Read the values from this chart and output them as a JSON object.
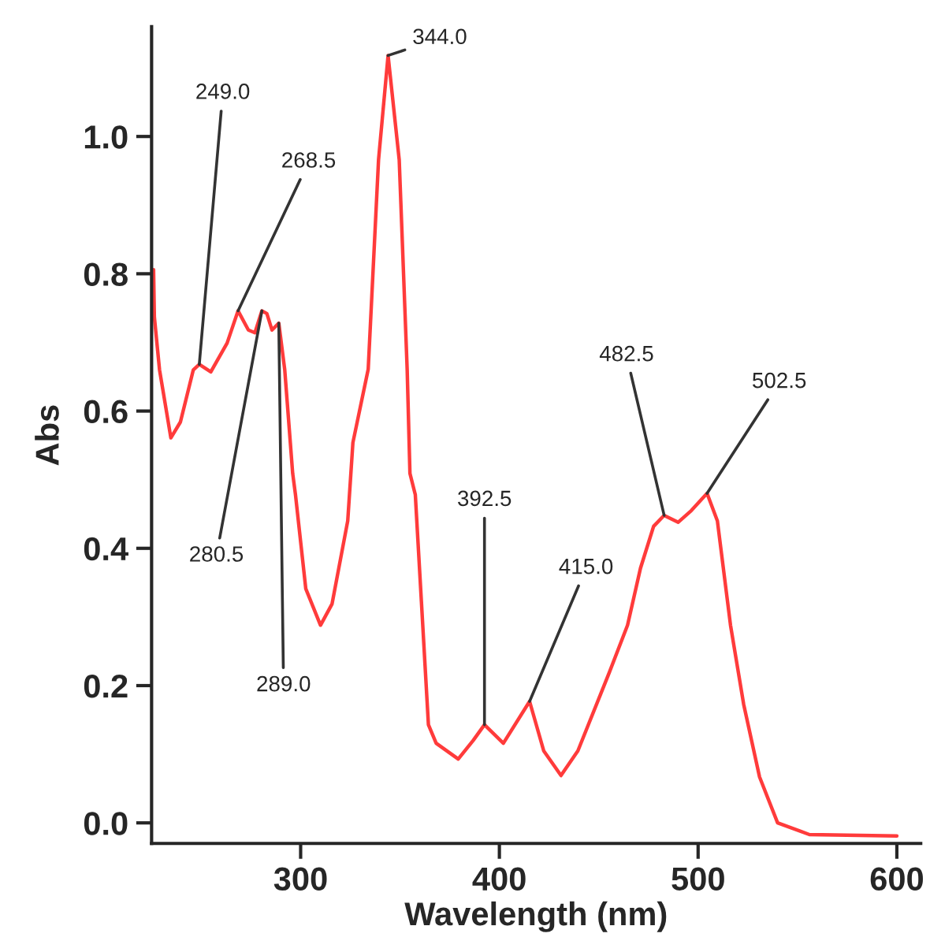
{
  "chart_data": {
    "type": "line",
    "xlabel": "Wavelength (nm)",
    "ylabel": "Abs",
    "x": [
      226,
      226.4,
      229,
      234.7,
      239.5,
      246,
      249,
      254.8,
      263,
      268.5,
      273.7,
      277,
      280.5,
      283,
      285.6,
      289,
      292,
      296,
      297.4,
      302.6,
      310,
      315.8,
      323.7,
      326.3,
      334,
      339.2,
      344,
      349.6,
      353.6,
      355,
      357.7,
      364.3,
      368.2,
      379.3,
      386.8,
      392.5,
      402,
      415.2,
      422.3,
      431,
      439.5,
      455.3,
      464.5,
      471,
      477.6,
      482.9,
      490,
      496.6,
      504.5,
      509.7,
      516.3,
      522.9,
      530.9,
      540,
      556,
      600
    ],
    "series": [
      {
        "color": "#ff3b3b",
        "values": [
          0.806,
          0.737,
          0.66,
          0.561,
          0.584,
          0.66,
          0.668,
          0.657,
          0.699,
          0.746,
          0.718,
          0.714,
          0.746,
          0.742,
          0.718,
          0.728,
          0.66,
          0.509,
          0.478,
          0.341,
          0.288,
          0.319,
          0.44,
          0.554,
          0.661,
          0.966,
          1.118,
          0.966,
          0.661,
          0.509,
          0.478,
          0.143,
          0.116,
          0.093,
          0.12,
          0.143,
          0.116,
          0.177,
          0.105,
          0.069,
          0.105,
          0.219,
          0.288,
          0.371,
          0.432,
          0.448,
          0.438,
          0.455,
          0.48,
          0.44,
          0.288,
          0.173,
          0.067,
          0.0,
          -0.017,
          -0.019
        ]
      }
    ],
    "xlim": [
      225,
      612
    ],
    "ylim": [
      -0.03,
      1.16
    ],
    "xticks": [
      300,
      400,
      500,
      600
    ],
    "yticks": [
      {
        "value": 0,
        "label": "0.0"
      },
      {
        "value": 0.2,
        "label": "0.2"
      },
      {
        "value": 0.4,
        "label": "0.4"
      },
      {
        "value": 0.6,
        "label": "0.6"
      },
      {
        "value": 0.8,
        "label": "0.8"
      },
      {
        "value": 1.0,
        "label": "1.0"
      }
    ],
    "grid": false,
    "marker": "none",
    "line_style": "solid",
    "annotations": [
      {
        "text": "249.0",
        "x": 249,
        "y": 0.668
      },
      {
        "text": "268.5",
        "x": 268.5,
        "y": 0.746
      },
      {
        "text": "344.0",
        "x": 344,
        "y": 1.118
      },
      {
        "text": "280.5",
        "x": 280.5,
        "y": 0.746
      },
      {
        "text": "289.0",
        "x": 289,
        "y": 0.728
      },
      {
        "text": "392.5",
        "x": 392.5,
        "y": 0.143
      },
      {
        "text": "415.0",
        "x": 415.2,
        "y": 0.177
      },
      {
        "text": "482.5",
        "x": 482.9,
        "y": 0.448
      },
      {
        "text": "502.5",
        "x": 504.5,
        "y": 0.48
      }
    ]
  }
}
